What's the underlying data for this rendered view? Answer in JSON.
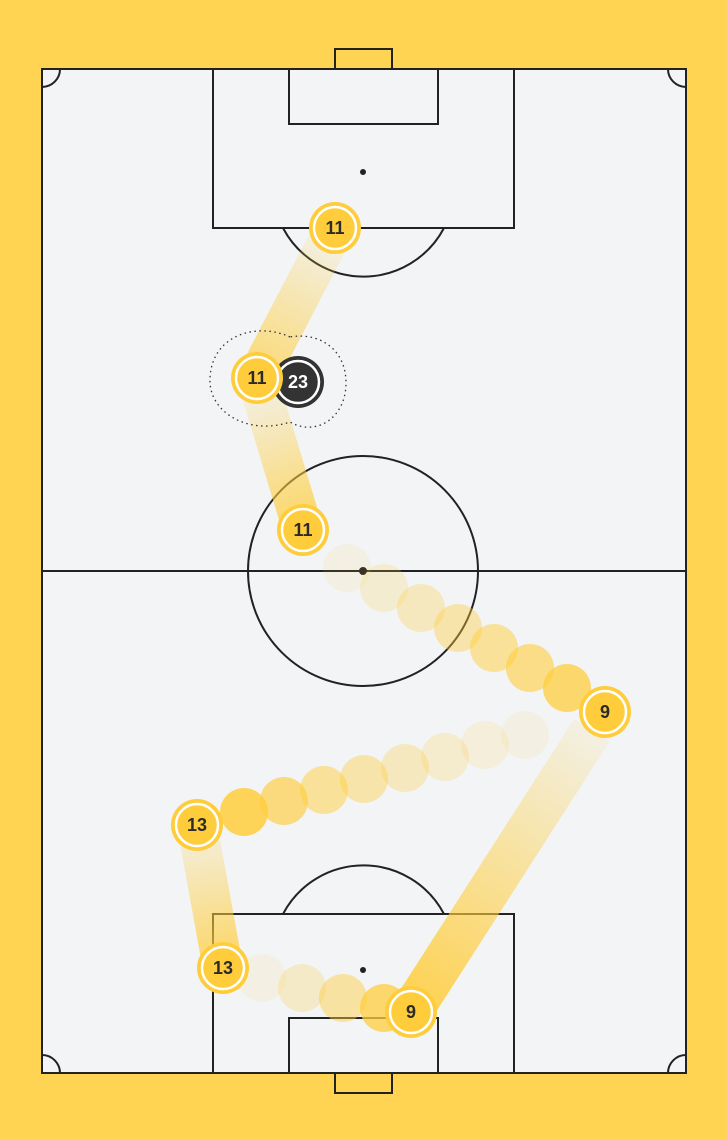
{
  "colors": {
    "background": "#FFD452",
    "pitch": "#F2F4F6",
    "line": "#222222",
    "accent": "#FFCD3C",
    "opponent": "#333333"
  },
  "players": [
    {
      "id": "p11-a",
      "label": "11",
      "team": "attack"
    },
    {
      "id": "p11-b",
      "label": "11",
      "team": "attack"
    },
    {
      "id": "p11-c",
      "label": "11",
      "team": "attack"
    },
    {
      "id": "p23",
      "label": "23",
      "team": "defense"
    },
    {
      "id": "p9-a",
      "label": "9",
      "team": "attack"
    },
    {
      "id": "p9-b",
      "label": "9",
      "team": "attack"
    },
    {
      "id": "p13-a",
      "label": "13",
      "team": "attack"
    },
    {
      "id": "p13-b",
      "label": "13",
      "team": "attack"
    }
  ]
}
